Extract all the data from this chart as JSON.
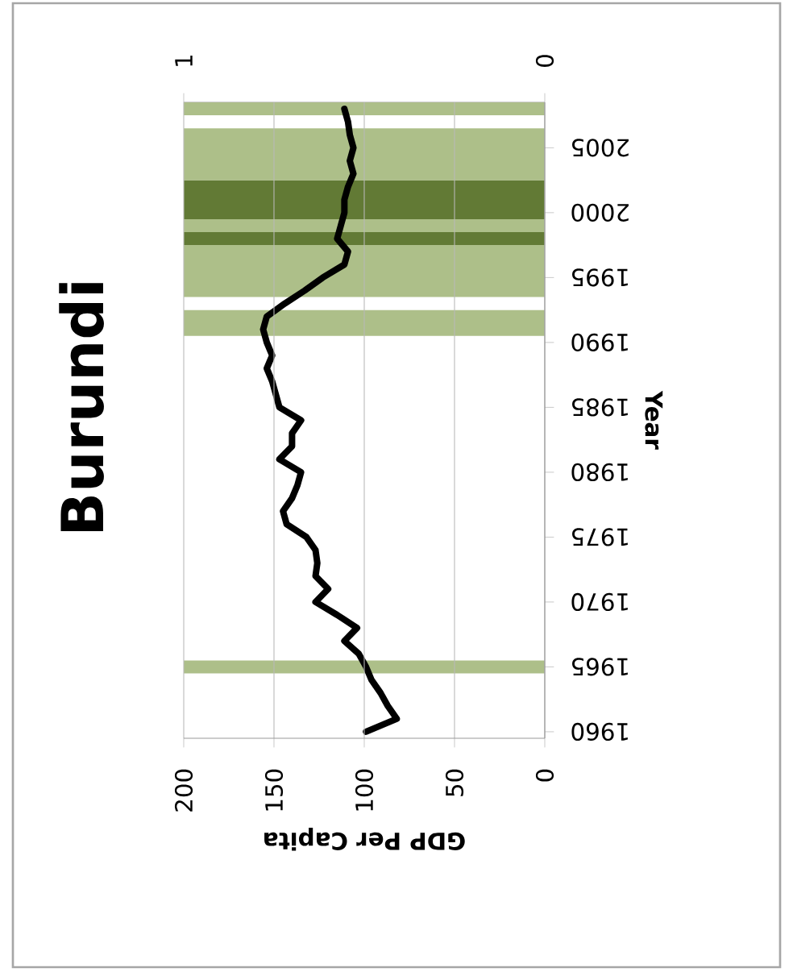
{
  "chart_data": {
    "type": "line",
    "title": "Burundi",
    "xlabel": "GDP Per Capita",
    "ylabel": "Year",
    "xlim": [
      200,
      0
    ],
    "xticks": [
      0,
      50,
      100,
      150,
      200
    ],
    "ylim": [
      1959.5,
      2008.5
    ],
    "yticks": [
      1960,
      1965,
      1970,
      1975,
      1980,
      1985,
      1990,
      1995,
      2000,
      2005
    ],
    "x2lim": [
      1,
      0
    ],
    "x2ticks": [
      0,
      1
    ],
    "grid": "x",
    "bands": [
      {
        "axis": "y",
        "from": 1964.5,
        "to": 1965.5,
        "color": "#adbf89"
      },
      {
        "axis": "y",
        "from": 1990.5,
        "to": 1992.5,
        "color": "#adbf89"
      },
      {
        "axis": "y",
        "from": 1993.5,
        "to": 1997.5,
        "color": "#adbf89"
      },
      {
        "axis": "y",
        "from": 1997.5,
        "to": 1998.5,
        "color": "#627a35"
      },
      {
        "axis": "y",
        "from": 1998.5,
        "to": 1999.5,
        "color": "#adbf89"
      },
      {
        "axis": "y",
        "from": 1999.5,
        "to": 2002.5,
        "color": "#627a35"
      },
      {
        "axis": "y",
        "from": 2002.5,
        "to": 2006.5,
        "color": "#adbf89"
      },
      {
        "axis": "y",
        "from": 2007.5,
        "to": 2008.5,
        "color": "#adbf89"
      }
    ],
    "series": [
      {
        "color": "#000000",
        "x": [
          99,
          82,
          87,
          91,
          96,
          99,
          103,
          111,
          104,
          115,
          127,
          120,
          127,
          126,
          127,
          132,
          143,
          145,
          140,
          137,
          135,
          147,
          140,
          140,
          135,
          147,
          149,
          151,
          154,
          151,
          154,
          156,
          154,
          144,
          133,
          123,
          111,
          109,
          115,
          113,
          111,
          111,
          109,
          106,
          108,
          106,
          108,
          109,
          111
        ],
        "values": [
          1960,
          1961,
          1962,
          1963,
          1964,
          1965,
          1966,
          1967,
          1968,
          1969,
          1970,
          1971,
          1972,
          1973,
          1974,
          1975,
          1976,
          1977,
          1978,
          1979,
          1980,
          1981,
          1982,
          1983,
          1984,
          1985,
          1986,
          1987,
          1988,
          1989,
          1990,
          1991,
          1992,
          1993,
          1994,
          1995,
          1996,
          1997,
          1998,
          1999,
          2000,
          2001,
          2002,
          2003,
          2004,
          2005,
          2006,
          2007,
          2008
        ]
      }
    ]
  }
}
